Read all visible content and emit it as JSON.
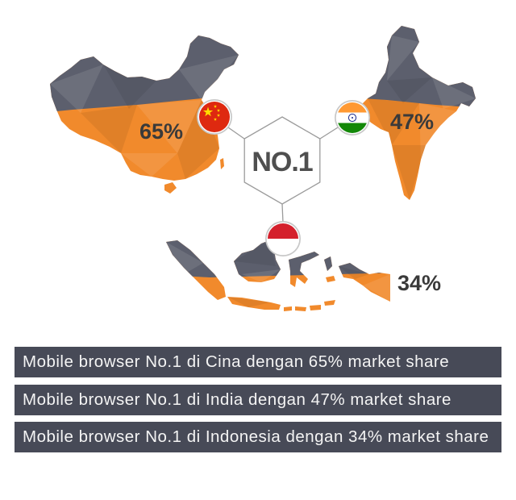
{
  "colors": {
    "orange": "#f18a2c",
    "gray": "#5c5f6d",
    "line": "#9b9b9b",
    "badge-text": "#4f4f4f",
    "share-text": "#3a3a3a",
    "bar": "#474a57",
    "bar-text": "#f4f4f4"
  },
  "badge": {
    "label": "NO.1"
  },
  "regions": [
    {
      "map_icon": "china-map",
      "flag_icon": "china-flag",
      "share": "65%"
    },
    {
      "map_icon": "india-map",
      "flag_icon": "india-flag",
      "share": "47%"
    },
    {
      "map_icon": "indonesia-map",
      "flag_icon": "indonesia-flag",
      "share": "34%"
    }
  ],
  "captions": [
    "Mobile browser No.1 di Cina dengan 65% market share",
    "Mobile browser No.1 di India dengan 47% market share",
    "Mobile browser No.1 di Indonesia dengan 34% market share"
  ]
}
